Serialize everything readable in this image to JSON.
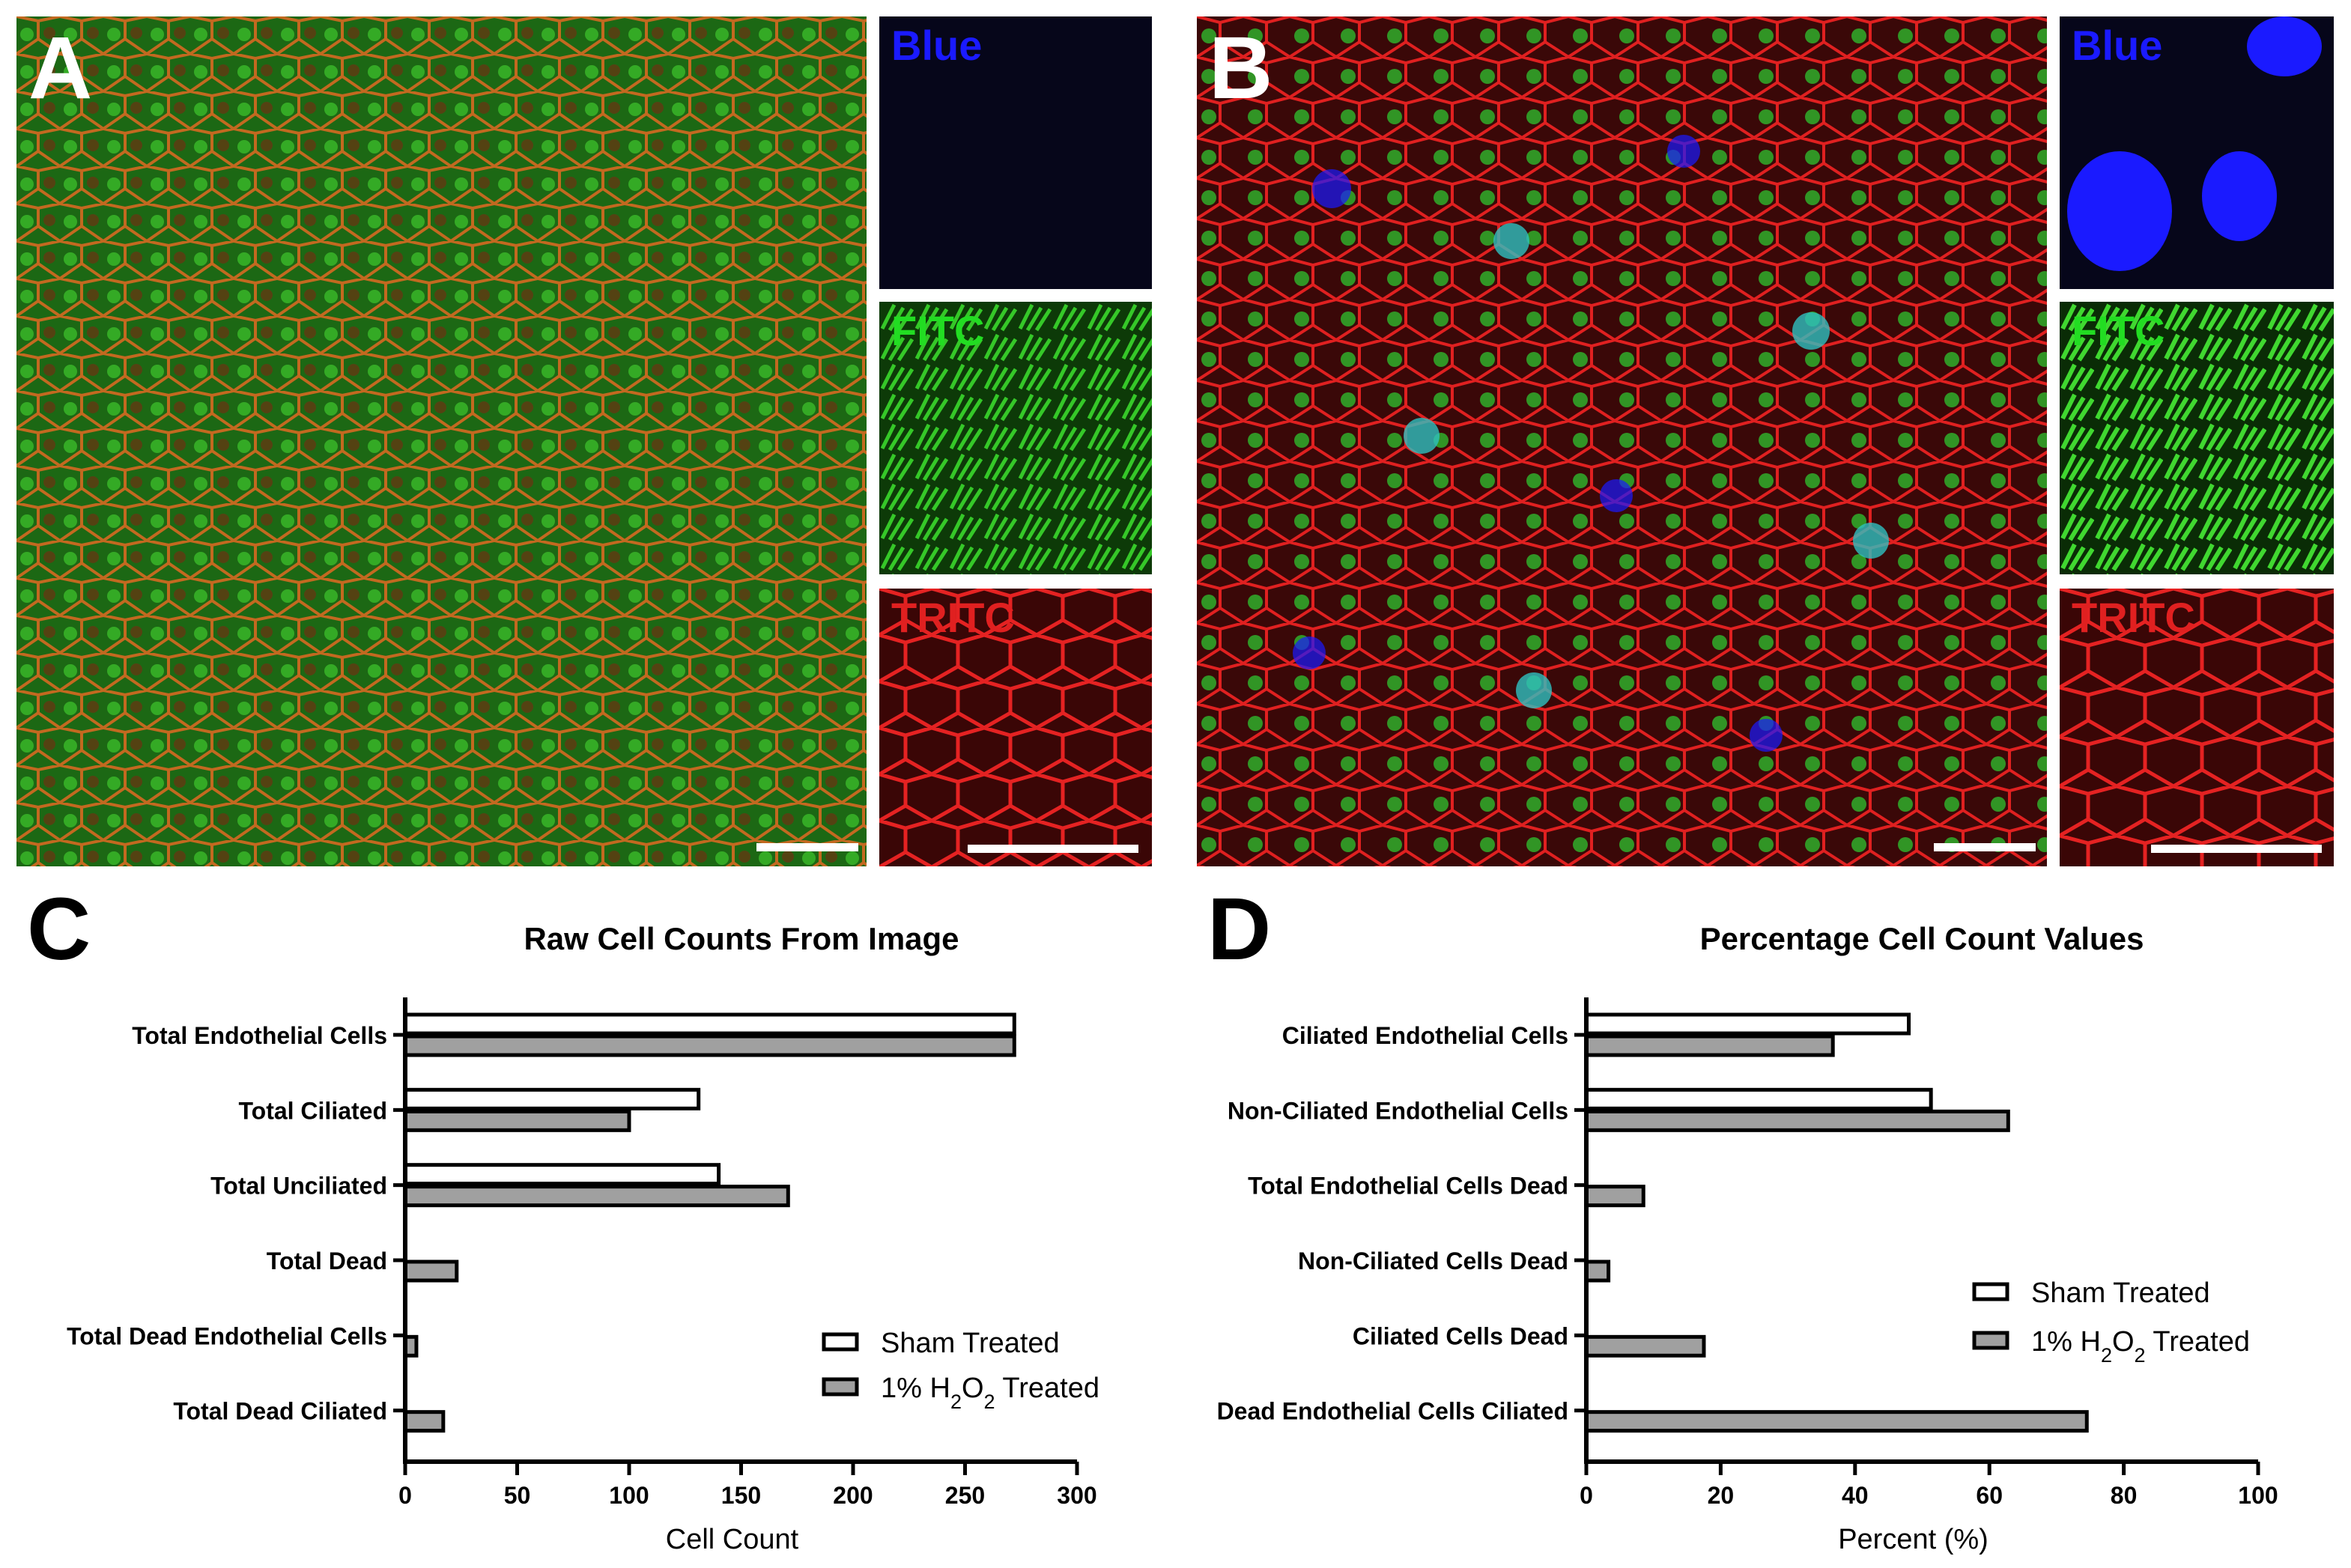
{
  "panels": {
    "a": {
      "letter": "A"
    },
    "b": {
      "letter": "B"
    },
    "c": {
      "letter": "C"
    },
    "d": {
      "letter": "D"
    }
  },
  "channels": {
    "blue": "Blue",
    "fitc": "FITC",
    "tritc": "TRITC"
  },
  "colors": {
    "blue_channel": "#1a1aff",
    "fitc_channel": "#22dd22",
    "tritc_channel": "#e02020",
    "sham_fill": "#ffffff",
    "treated_fill": "#a0a0a0",
    "bar_stroke": "#000000"
  },
  "chart_data": [
    {
      "type": "bar",
      "orientation": "horizontal",
      "title": "Raw Cell Counts From Image",
      "xlabel": "Cell Count",
      "ylabel": "",
      "xlim": [
        0,
        300
      ],
      "xticks": [
        0,
        50,
        100,
        150,
        200,
        250,
        300
      ],
      "categories": [
        "Total Endothelial Cells",
        "Total Ciliated",
        "Total Unciliated",
        "Total Dead",
        "Total Dead Endothelial Cells",
        "Total Dead Ciliated"
      ],
      "series": [
        {
          "name": "Sham Treated",
          "values": [
            272,
            131,
            140,
            0,
            0,
            0
          ]
        },
        {
          "name": "1% H2O2 Treated",
          "values": [
            272,
            100,
            171,
            23,
            5,
            17
          ]
        }
      ],
      "legend": "bottom-right",
      "grid": false
    },
    {
      "type": "bar",
      "orientation": "horizontal",
      "title": "Percentage Cell Count Values",
      "xlabel": "Percent (%)",
      "ylabel": "",
      "xlim": [
        0,
        100
      ],
      "xticks": [
        0,
        20,
        40,
        60,
        80,
        100
      ],
      "categories": [
        "Ciliated Endothelial Cells",
        "Non-Ciliated Endothelial Cells",
        "Total Endothelial Cells Dead",
        "Non-Ciliated Cells Dead",
        "Ciliated Cells Dead",
        "Dead Endothelial Cells Ciliated"
      ],
      "series": [
        {
          "name": "Sham Treated",
          "values": [
            48,
            51.3,
            0,
            0,
            0,
            0
          ]
        },
        {
          "name": "1% H2O2 Treated",
          "values": [
            36.7,
            62.8,
            8.5,
            3.3,
            17.5,
            74.5
          ]
        }
      ],
      "legend": "right",
      "grid": false
    }
  ]
}
